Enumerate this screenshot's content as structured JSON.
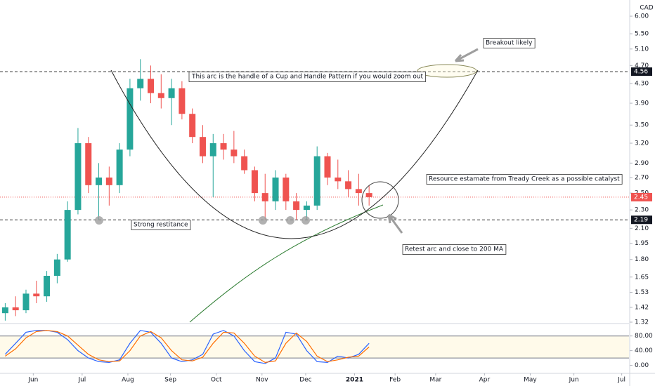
{
  "chart_data": {
    "type": "candlestick",
    "currency": "CAD",
    "log_scale": true,
    "up_color": "#26a69a",
    "down_color": "#ef5350",
    "xlim": [
      -0.5,
      60
    ],
    "ylim": [
      1.32,
      6.5
    ],
    "xticks": [
      {
        "value": 2.7,
        "label": "Jun"
      },
      {
        "value": 7.4,
        "label": "Jul"
      },
      {
        "value": 11.8,
        "label": "Aug"
      },
      {
        "value": 15.9,
        "label": "Sep"
      },
      {
        "value": 20.3,
        "label": "Oct"
      },
      {
        "value": 24.7,
        "label": "Nov"
      },
      {
        "value": 28.9,
        "label": "Dec"
      },
      {
        "value": 33.6,
        "label": "2021"
      },
      {
        "value": 37.5,
        "label": "Feb"
      },
      {
        "value": 41.4,
        "label": "Mar"
      },
      {
        "value": 46.1,
        "label": "Apr"
      },
      {
        "value": 50.5,
        "label": "May"
      },
      {
        "value": 54.7,
        "label": "Jun"
      },
      {
        "value": 59.3,
        "label": "Jul"
      }
    ],
    "yticks": [
      {
        "value": 6,
        "label": "6.00"
      },
      {
        "value": 5.5,
        "label": "5.50"
      },
      {
        "value": 5.1,
        "label": "5.10"
      },
      {
        "value": 4.7,
        "label": "4.70"
      },
      {
        "value": 4.3,
        "label": "4.30"
      },
      {
        "value": 3.9,
        "label": "3.90"
      },
      {
        "value": 3.5,
        "label": "3.50"
      },
      {
        "value": 3.2,
        "label": "3.20"
      },
      {
        "value": 2.9,
        "label": "2.90"
      },
      {
        "value": 2.7,
        "label": "2.70"
      },
      {
        "value": 2.5,
        "label": "2.50"
      },
      {
        "value": 2.3,
        "label": "2.30"
      },
      {
        "value": 2.1,
        "label": "2.10"
      },
      {
        "value": 1.95,
        "label": "1.95"
      },
      {
        "value": 1.8,
        "label": "1.80"
      },
      {
        "value": 1.65,
        "label": "1.65"
      },
      {
        "value": 1.53,
        "label": "1.53"
      },
      {
        "value": 1.42,
        "label": "1.42"
      },
      {
        "value": 1.32,
        "label": "1.32"
      }
    ],
    "open": [
      1.38,
      1.42,
      1.4,
      1.52,
      1.5,
      1.66,
      1.8,
      2.3,
      3.2,
      2.6,
      2.7,
      2.6,
      3.1,
      4.2,
      4.4,
      4.1,
      4.0,
      4.2,
      3.7,
      3.3,
      3.0,
      3.2,
      3.1,
      3.0,
      2.8,
      2.5,
      2.4,
      2.7,
      2.4,
      2.3,
      2.35,
      3.0,
      2.7,
      2.65,
      2.55,
      2.5
    ],
    "high": [
      1.45,
      1.5,
      1.55,
      1.62,
      1.7,
      1.85,
      2.4,
      3.45,
      3.3,
      2.9,
      2.85,
      3.2,
      4.4,
      4.85,
      4.7,
      4.5,
      4.4,
      4.35,
      3.8,
      3.5,
      3.35,
      3.35,
      3.4,
      3.1,
      2.85,
      2.75,
      2.8,
      2.75,
      2.5,
      2.4,
      3.15,
      3.05,
      2.95,
      2.8,
      2.75,
      2.6
    ],
    "low": [
      1.33,
      1.36,
      1.38,
      1.45,
      1.46,
      1.6,
      1.78,
      2.25,
      2.5,
      2.19,
      2.35,
      2.5,
      3.0,
      3.95,
      3.9,
      3.8,
      3.5,
      3.6,
      3.2,
      2.9,
      2.45,
      2.95,
      2.9,
      2.75,
      2.4,
      2.19,
      2.3,
      2.3,
      2.19,
      2.19,
      2.3,
      2.6,
      2.55,
      2.45,
      2.35,
      2.35
    ],
    "close": [
      1.42,
      1.4,
      1.52,
      1.5,
      1.66,
      1.8,
      2.3,
      3.2,
      2.6,
      2.7,
      2.6,
      3.1,
      4.2,
      4.4,
      4.1,
      4.0,
      4.2,
      3.7,
      3.3,
      3.0,
      3.2,
      3.1,
      3.0,
      2.8,
      2.5,
      2.4,
      2.7,
      2.4,
      2.3,
      2.35,
      3.0,
      2.7,
      2.65,
      2.55,
      2.5,
      2.45
    ],
    "levels": [
      {
        "value": 4.56,
        "label": "4.56"
      },
      {
        "value": 2.19,
        "label": "2.19"
      }
    ],
    "last_price": {
      "value": 2.45,
      "label": "2.45",
      "color": "#ef5350"
    },
    "annotations": [
      "Breakout likely",
      "This arc is the handle of a Cup and Handle Pattern if you would zoom out",
      "Resource estamate from Tready Creek as a possible catalyst",
      "Strong restitance",
      "Retest arc and close to 200 MA"
    ],
    "oscillator": {
      "ylim": [
        -20,
        110
      ],
      "yticks": [
        {
          "value": 80,
          "label": "80.00"
        },
        {
          "value": 40,
          "label": "40.00"
        },
        {
          "value": 0,
          "label": "0.00"
        }
      ],
      "band": [
        20,
        80
      ],
      "series": [
        {
          "color": "#2962ff",
          "values": [
            30,
            60,
            90,
            95,
            95,
            90,
            70,
            40,
            20,
            10,
            8,
            15,
            60,
            95,
            90,
            60,
            20,
            10,
            15,
            30,
            85,
            95,
            80,
            40,
            10,
            5,
            20,
            90,
            85,
            40,
            10,
            8,
            25,
            20,
            30,
            60
          ]
        },
        {
          "color": "#ff6d00",
          "values": [
            25,
            45,
            75,
            92,
            95,
            92,
            80,
            55,
            30,
            15,
            10,
            12,
            40,
            80,
            92,
            75,
            40,
            15,
            12,
            22,
            60,
            90,
            88,
            60,
            25,
            8,
            12,
            60,
            88,
            65,
            25,
            10,
            15,
            22,
            25,
            50
          ]
        }
      ]
    }
  }
}
